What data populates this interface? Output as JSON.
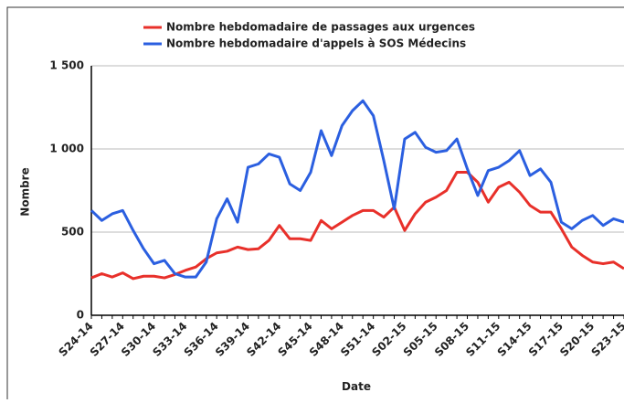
{
  "chart_data": {
    "type": "line",
    "ylabel": "Nombre",
    "xlabel": "Date",
    "categories": [
      "S24-14",
      null,
      null,
      "S27-14",
      null,
      null,
      "S30-14",
      null,
      null,
      "S33-14",
      null,
      null,
      "S36-14",
      null,
      null,
      "S39-14",
      null,
      null,
      "S42-14",
      null,
      null,
      "S45-14",
      null,
      null,
      "S48-14",
      null,
      null,
      "S51-14",
      null,
      null,
      "S02-15",
      null,
      null,
      "S05-15",
      null,
      null,
      "S08-15",
      null,
      null,
      "S11-15",
      null,
      null,
      "S14-15",
      null,
      null,
      "S17-15",
      null,
      null,
      "S20-15",
      null,
      null,
      "S23-15"
    ],
    "series": [
      {
        "name": "Nombre hebdomadaire de passages aux urgences",
        "color": "#e8302a",
        "values": [
          225,
          250,
          230,
          255,
          220,
          235,
          235,
          225,
          245,
          270,
          290,
          340,
          375,
          385,
          410,
          395,
          400,
          450,
          540,
          460,
          460,
          450,
          570,
          520,
          560,
          600,
          630,
          630,
          590,
          650,
          510,
          610,
          680,
          710,
          750,
          860,
          860,
          800,
          680,
          770,
          800,
          740,
          660,
          620,
          620,
          520,
          410,
          360,
          320,
          310,
          320,
          280
        ]
      },
      {
        "name": "Nombre hebdomadaire d'appels à SOS Médecins",
        "color": "#2b5fe0",
        "values": [
          630,
          570,
          610,
          630,
          510,
          400,
          310,
          330,
          250,
          230,
          230,
          320,
          580,
          700,
          560,
          890,
          910,
          970,
          950,
          790,
          750,
          860,
          1110,
          960,
          1140,
          1230,
          1290,
          1200,
          930,
          640,
          1060,
          1100,
          1010,
          980,
          990,
          1060,
          880,
          720,
          870,
          890,
          930,
          990,
          840,
          880,
          800,
          560,
          520,
          570,
          600,
          540,
          580,
          560
        ]
      }
    ],
    "ylim": [
      0,
      1500
    ],
    "yticks": [
      0,
      500,
      {
        "value": 1000,
        "label": "1 000"
      },
      {
        "value": 1500,
        "label": "1 500"
      }
    ],
    "grid": true
  }
}
